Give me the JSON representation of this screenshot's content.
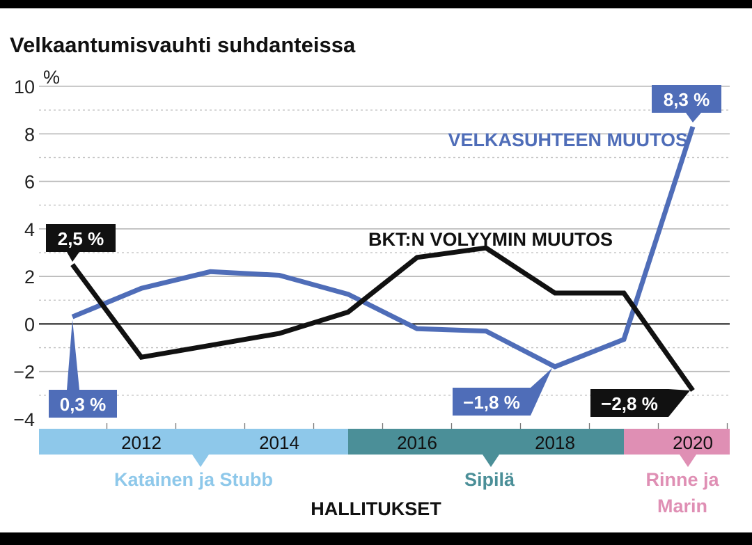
{
  "chart_data": {
    "type": "line",
    "title": "Velkaantumisvauhti suhdanteissa",
    "yunit": "%",
    "ylim": [
      -4,
      10
    ],
    "yticks": [
      "10",
      "8",
      "6",
      "4",
      "2",
      "0",
      "-2",
      "-4"
    ],
    "x_tick_labels": [
      "2012",
      "2014",
      "2016",
      "2018",
      "2020"
    ],
    "x": [
      2011,
      2012,
      2013,
      2014,
      2015,
      2016,
      2017,
      2018,
      2019,
      2020
    ],
    "series": [
      {
        "name": "VELKASUHTEEN MUUTOS",
        "color": "#4f6db8",
        "values": [
          0.3,
          1.5,
          2.2,
          2.05,
          1.25,
          -0.2,
          -0.3,
          -1.8,
          -0.65,
          8.3
        ]
      },
      {
        "name": "BKT:N VOLYYMIN MUUTOS",
        "color": "#111111",
        "values": [
          2.5,
          -1.4,
          -0.9,
          -0.4,
          0.5,
          2.8,
          3.2,
          1.3,
          1.3,
          -2.8
        ]
      }
    ],
    "callouts": [
      {
        "text": "2,5 %",
        "series": 1,
        "index": 0
      },
      {
        "text": "0,3 %",
        "series": 0,
        "index": 0
      },
      {
        "text": "8,3 %",
        "series": 0,
        "index": 9
      },
      {
        "text": "−1,8 %",
        "series": 0,
        "index": 7
      },
      {
        "text": "−2,8 %",
        "series": 1,
        "index": 9
      }
    ],
    "governments": [
      {
        "name": "Katainen ja Stubb",
        "lines": [
          "Katainen ja Stubb"
        ],
        "color": "#8ec8ea",
        "text_color": "#8ec8ea",
        "from": 2011,
        "to": 2015
      },
      {
        "name": "Sipilä",
        "lines": [
          "Sipilä"
        ],
        "color": "#4b8f98",
        "text_color": "#4b8f98",
        "from": 2015,
        "to": 2019
      },
      {
        "name": "Rinne ja Marin",
        "lines": [
          "Rinne ja",
          "Marin"
        ],
        "color": "#df8fb4",
        "text_color": "#df8fb4",
        "from": 2019,
        "to": 2020
      }
    ],
    "governments_label": "HALLITUKSET",
    "grid": true
  }
}
